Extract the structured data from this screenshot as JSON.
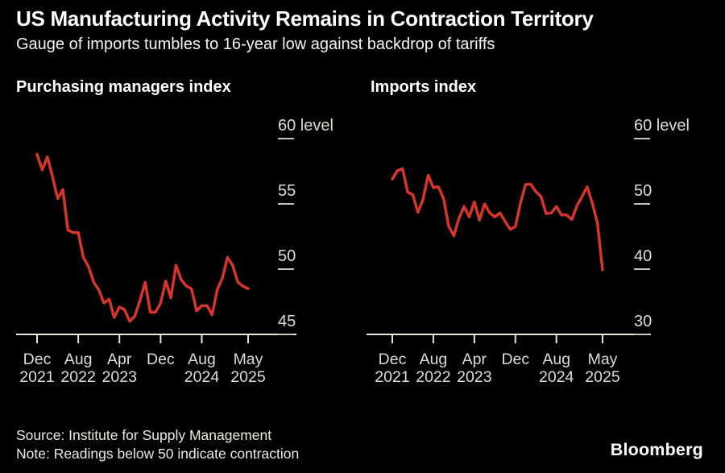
{
  "header": {
    "title": "US Manufacturing Activity Remains in Contraction Territory",
    "subtitle": "Gauge of imports tumbles to 16-year low against backdrop of tariffs"
  },
  "chart_data": [
    {
      "type": "line",
      "title": "Purchasing managers index",
      "xlabel": "",
      "ylabel": "level",
      "ylim": [
        45,
        60
      ],
      "yticks": [
        60,
        55,
        50,
        45
      ],
      "ytick_top_label": "60 level",
      "grid": false,
      "legend_position": "none",
      "line_color": "#d6352b",
      "x": [
        "Dec 2021",
        "Jan 2022",
        "Feb 2022",
        "Mar 2022",
        "Apr 2022",
        "May 2022",
        "Jun 2022",
        "Jul 2022",
        "Aug 2022",
        "Sep 2022",
        "Oct 2022",
        "Nov 2022",
        "Dec 2022",
        "Jan 2023",
        "Feb 2023",
        "Mar 2023",
        "Apr 2023",
        "May 2023",
        "Jun 2023",
        "Jul 2023",
        "Aug 2023",
        "Sep 2023",
        "Oct 2023",
        "Nov 2023",
        "Dec 2023",
        "Jan 2024",
        "Feb 2024",
        "Mar 2024",
        "Apr 2024",
        "May 2024",
        "Jun 2024",
        "Jul 2024",
        "Aug 2024",
        "Sep 2024",
        "Oct 2024",
        "Nov 2024",
        "Dec 2024",
        "Jan 2025",
        "Feb 2025",
        "Mar 2025",
        "Apr 2025",
        "May 2025"
      ],
      "values": [
        58.8,
        57.6,
        58.6,
        57.1,
        55.4,
        56.1,
        53.0,
        52.8,
        52.8,
        50.9,
        50.2,
        49.0,
        48.4,
        47.4,
        47.7,
        46.3,
        47.1,
        46.9,
        46.0,
        46.4,
        47.6,
        49.0,
        46.7,
        46.7,
        47.4,
        49.1,
        47.8,
        50.3,
        49.2,
        48.7,
        48.5,
        46.8,
        47.2,
        47.2,
        46.5,
        48.4,
        49.3,
        50.9,
        50.3,
        49.0,
        48.7,
        48.5
      ],
      "xticks": [
        {
          "index": 0,
          "month": "Dec",
          "year": "2021"
        },
        {
          "index": 8,
          "month": "Aug",
          "year": "2022"
        },
        {
          "index": 16,
          "month": "Apr",
          "year": "2023"
        },
        {
          "index": 24,
          "month": "Dec",
          "year": ""
        },
        {
          "index": 32,
          "month": "Aug",
          "year": "2024"
        },
        {
          "index": 41,
          "month": "May",
          "year": "2025"
        }
      ]
    },
    {
      "type": "line",
      "title": "Imports index",
      "xlabel": "",
      "ylabel": "level",
      "ylim": [
        30,
        60
      ],
      "yticks": [
        60,
        50,
        40,
        30
      ],
      "ytick_top_label": "60 level",
      "grid": false,
      "legend_position": "none",
      "line_color": "#d6352b",
      "x": [
        "Dec 2021",
        "Jan 2022",
        "Feb 2022",
        "Mar 2022",
        "Apr 2022",
        "May 2022",
        "Jun 2022",
        "Jul 2022",
        "Aug 2022",
        "Sep 2022",
        "Oct 2022",
        "Nov 2022",
        "Dec 2022",
        "Jan 2023",
        "Feb 2023",
        "Mar 2023",
        "Apr 2023",
        "May 2023",
        "Jun 2023",
        "Jul 2023",
        "Aug 2023",
        "Sep 2023",
        "Oct 2023",
        "Nov 2023",
        "Dec 2023",
        "Jan 2024",
        "Feb 2024",
        "Mar 2024",
        "Apr 2024",
        "May 2024",
        "Jun 2024",
        "Jul 2024",
        "Aug 2024",
        "Sep 2024",
        "Oct 2024",
        "Nov 2024",
        "Dec 2024",
        "Jan 2025",
        "Feb 2025",
        "Mar 2025",
        "Apr 2025",
        "May 2025"
      ],
      "values": [
        53.8,
        55.1,
        55.4,
        51.8,
        51.4,
        48.7,
        50.7,
        54.4,
        52.5,
        52.6,
        50.8,
        46.6,
        45.1,
        47.8,
        49.6,
        48.0,
        50.3,
        47.5,
        50.0,
        48.6,
        48.0,
        48.6,
        47.3,
        46.1,
        46.5,
        50.1,
        53.0,
        53.0,
        51.9,
        51.1,
        48.5,
        48.6,
        49.6,
        48.3,
        48.3,
        47.6,
        49.7,
        51.1,
        52.6,
        50.1,
        47.1,
        39.9
      ],
      "xticks": [
        {
          "index": 0,
          "month": "Dec",
          "year": "2021"
        },
        {
          "index": 8,
          "month": "Aug",
          "year": "2022"
        },
        {
          "index": 16,
          "month": "Apr",
          "year": "2023"
        },
        {
          "index": 24,
          "month": "Dec",
          "year": ""
        },
        {
          "index": 32,
          "month": "Aug",
          "year": "2024"
        },
        {
          "index": 41,
          "month": "May",
          "year": "2025"
        }
      ]
    }
  ],
  "footer": {
    "source": "Source: Institute for Supply Management",
    "note": "Note: Readings below 50 indicate contraction",
    "brand": "Bloomberg"
  },
  "colors": {
    "background": "#000000",
    "line_red": "#d6352b",
    "axis_text": "#dedcd5",
    "axis_line": "#e8e6df",
    "tick": "#c8c6bf",
    "title_text": "#ffffff",
    "footer_text": "#eceae3"
  }
}
